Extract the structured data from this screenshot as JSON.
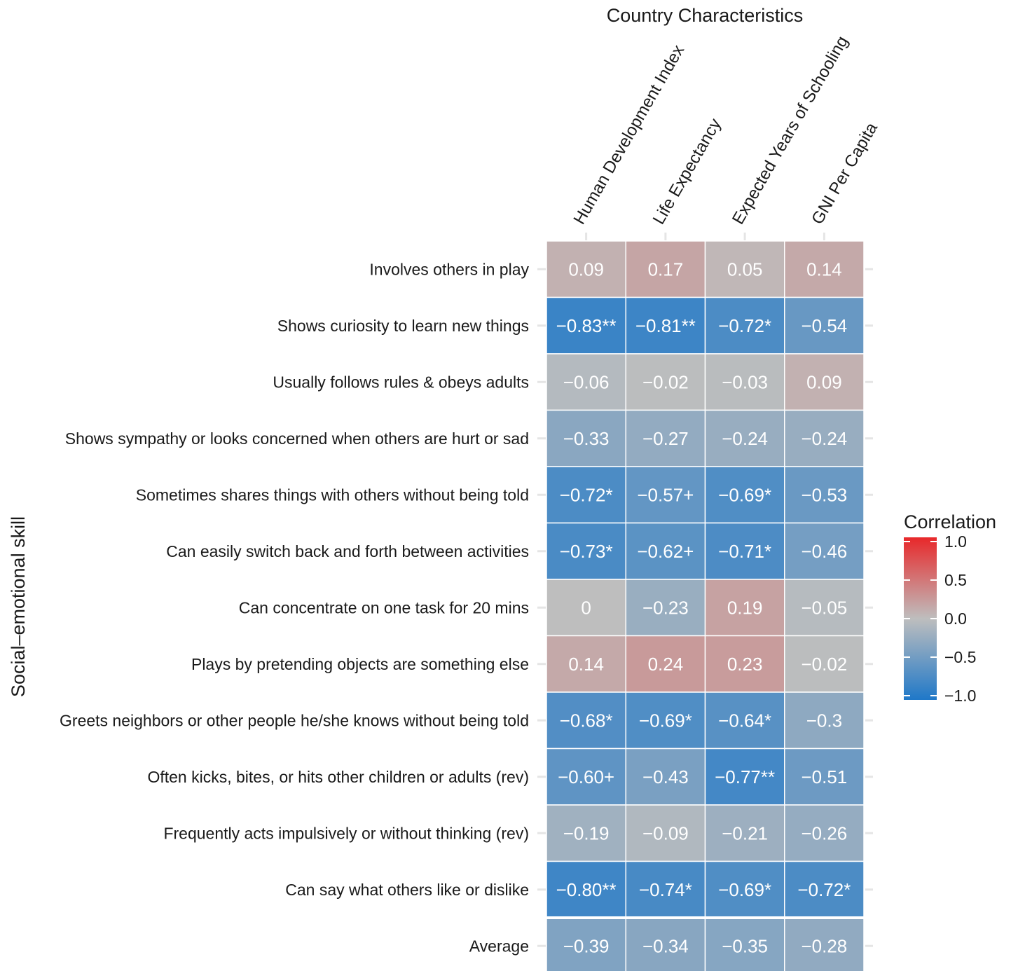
{
  "chart_data": {
    "type": "heatmap",
    "title": "Country Characteristics",
    "xlabel": "Country Characteristics",
    "ylabel": "Social–emotional skill",
    "x_categories": [
      "Human Development Index",
      "Life Expectancy",
      "Expected Years of Schooling",
      "GNI Per Capita"
    ],
    "y_categories": [
      "Involves others in play",
      "Shows curiosity to learn new things",
      "Usually follows rules & obeys adults",
      "Shows sympathy or looks concerned when others are hurt or sad",
      "Sometimes shares things with others without being told",
      "Can easily switch back and forth between activities",
      "Can concentrate on one task for 20 mins",
      "Plays by pretending objects are something else",
      "Greets neighbors or other people he/she knows without being told",
      "Often kicks, bites, or hits other children or adults (rev)",
      "Frequently acts impulsively or without thinking (rev)",
      "Can say what others like or dislike",
      "Average"
    ],
    "values": [
      [
        0.09,
        0.17,
        0.05,
        0.14
      ],
      [
        -0.83,
        -0.81,
        -0.72,
        -0.54
      ],
      [
        -0.06,
        -0.02,
        -0.03,
        0.09
      ],
      [
        -0.33,
        -0.27,
        -0.24,
        -0.24
      ],
      [
        -0.72,
        -0.57,
        -0.69,
        -0.53
      ],
      [
        -0.73,
        -0.62,
        -0.71,
        -0.46
      ],
      [
        0,
        -0.23,
        0.19,
        -0.05
      ],
      [
        0.14,
        0.24,
        0.23,
        -0.02
      ],
      [
        -0.68,
        -0.69,
        -0.64,
        -0.3
      ],
      [
        -0.6,
        -0.43,
        -0.77,
        -0.51
      ],
      [
        -0.19,
        -0.09,
        -0.21,
        -0.26
      ],
      [
        -0.8,
        -0.74,
        -0.69,
        -0.72
      ],
      [
        -0.39,
        -0.34,
        -0.35,
        -0.28
      ]
    ],
    "labels": [
      [
        "0.09",
        "0.17",
        "0.05",
        "0.14"
      ],
      [
        "−0.83**",
        "−0.81**",
        "−0.72*",
        "−0.54"
      ],
      [
        "−0.06",
        "−0.02",
        "−0.03",
        "0.09"
      ],
      [
        "−0.33",
        "−0.27",
        "−0.24",
        "−0.24"
      ],
      [
        "−0.72*",
        "−0.57+",
        "−0.69*",
        "−0.53"
      ],
      [
        "−0.73*",
        "−0.62+",
        "−0.71*",
        "−0.46"
      ],
      [
        "0",
        "−0.23",
        "0.19",
        "−0.05"
      ],
      [
        "0.14",
        "0.24",
        "0.23",
        "−0.02"
      ],
      [
        "−0.68*",
        "−0.69*",
        "−0.64*",
        "−0.3"
      ],
      [
        "−0.60+",
        "−0.43",
        "−0.77**",
        "−0.51"
      ],
      [
        "−0.19",
        "−0.09",
        "−0.21",
        "−0.26"
      ],
      [
        "−0.80**",
        "−0.74*",
        "−0.69*",
        "−0.72*"
      ],
      [
        "−0.39",
        "−0.34",
        "−0.35",
        "−0.28"
      ]
    ],
    "legend": {
      "title": "Correlation",
      "ticks": [
        1.0,
        0.5,
        0.0,
        -0.5,
        -1.0
      ],
      "tick_labels": [
        "1.0",
        "0.5",
        "0.0",
        "−0.5",
        "−1.0"
      ],
      "placement": "right"
    },
    "color_scale": {
      "low": "#1f78c8",
      "mid": "#bebebe",
      "high": "#e8282a",
      "domain": [
        -1,
        0,
        1
      ]
    },
    "grid": false
  }
}
